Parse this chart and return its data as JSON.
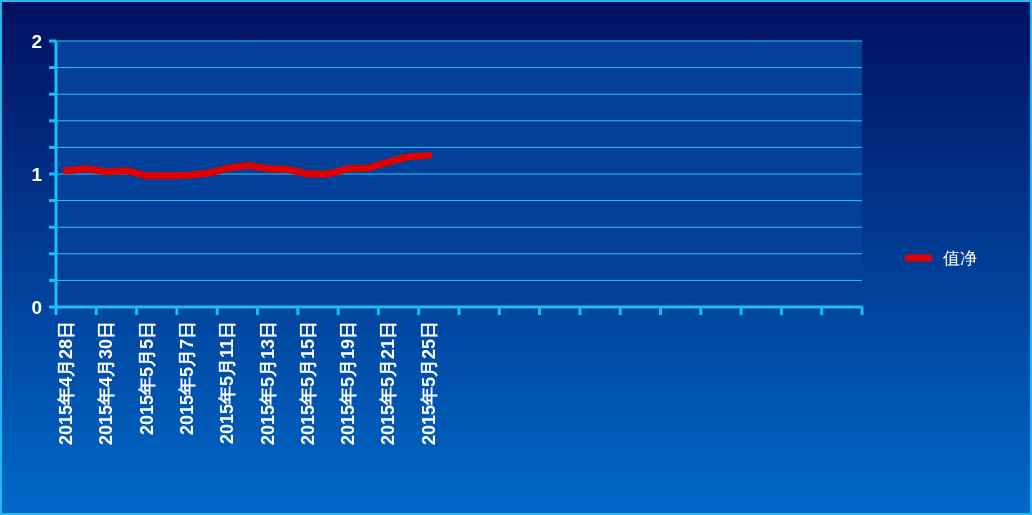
{
  "chart_data": {
    "type": "line",
    "categories": [
      "2015年4月28日",
      null,
      "2015年4月30日",
      null,
      "2015年5月5日",
      null,
      "2015年5月7日",
      null,
      "2015年5月11日",
      null,
      "2015年5月13日",
      null,
      "2015年5月15日",
      null,
      "2015年5月19日",
      null,
      "2015年5月21日",
      null,
      "2015年5月25日",
      null,
      null,
      null,
      null,
      null,
      null,
      null,
      null,
      null,
      null,
      null,
      null,
      null,
      null,
      null,
      null,
      null,
      null,
      null,
      null,
      null
    ],
    "series": [
      {
        "name": "值净",
        "color": "#e00000",
        "values": [
          1.025,
          1.04,
          1.017,
          1.025,
          0.987,
          0.987,
          0.99,
          1.005,
          1.043,
          1.065,
          1.04,
          1.035,
          1.0,
          1.0,
          1.04,
          1.045,
          1.09,
          1.13,
          1.14,
          null,
          null,
          null,
          null,
          null,
          null,
          null,
          null,
          null,
          null,
          null,
          null,
          null,
          null,
          null,
          null,
          null,
          null,
          null,
          null,
          null
        ]
      }
    ],
    "ylim": [
      0,
      2
    ],
    "yticks": [
      0,
      {
        "value": 0.2,
        "label": null
      },
      {
        "value": 0.4,
        "label": null
      },
      {
        "value": 0.6,
        "label": null
      },
      {
        "value": 0.8,
        "label": null
      },
      1,
      {
        "value": 1.2,
        "label": null
      },
      {
        "value": 1.4,
        "label": null
      },
      {
        "value": 1.6,
        "label": null
      },
      {
        "value": 1.8,
        "label": null
      },
      2
    ],
    "grid": "y",
    "legend": "right",
    "marker": "none",
    "line_style": "solid"
  }
}
